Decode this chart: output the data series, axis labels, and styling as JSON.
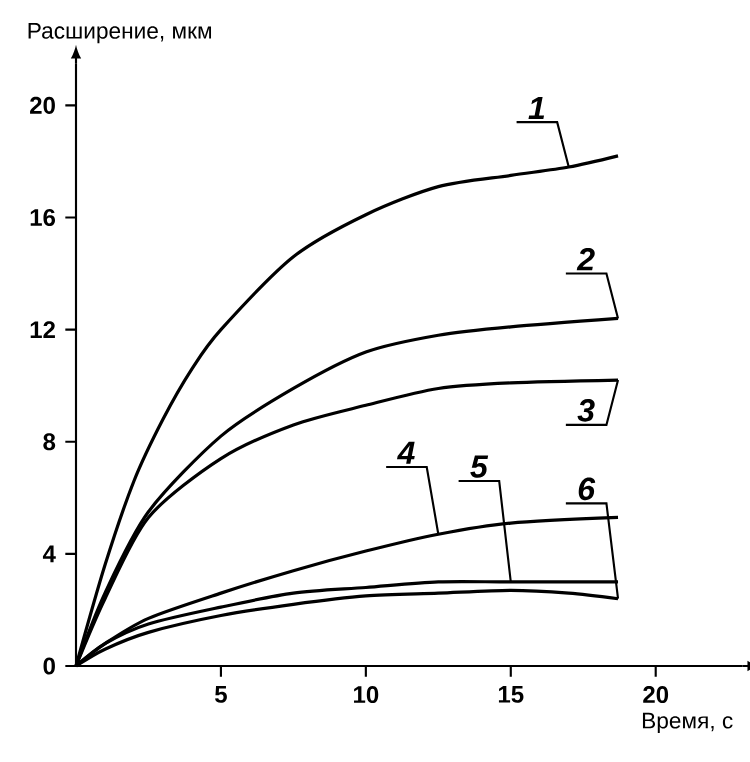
{
  "chart_data": {
    "type": "line",
    "xlabel": "Время, с",
    "ylabel": "Расширение, мкм",
    "xlim": [
      0,
      23
    ],
    "ylim": [
      0,
      21.5
    ],
    "xticks": [
      5,
      10,
      15,
      20
    ],
    "yticks": [
      0,
      4,
      8,
      12,
      16,
      20
    ],
    "legend": false,
    "grid": false,
    "marker": "none",
    "line_style": "solid",
    "series": [
      {
        "name": "1",
        "color": "#000000",
        "x": [
          0,
          1,
          2,
          3,
          4,
          5,
          7.5,
          10,
          12.5,
          15,
          17,
          18.7
        ],
        "values": [
          0,
          3.6,
          6.6,
          8.8,
          10.6,
          12.0,
          14.6,
          16.1,
          17.1,
          17.5,
          17.8,
          18.2
        ]
      },
      {
        "name": "2",
        "color": "#000000",
        "x": [
          0,
          1,
          2.5,
          5,
          7.5,
          10,
          12.5,
          15,
          18.7
        ],
        "values": [
          0,
          2.6,
          5.5,
          8.2,
          9.9,
          11.2,
          11.8,
          12.1,
          12.4
        ]
      },
      {
        "name": "3",
        "color": "#000000",
        "x": [
          0,
          1,
          2.5,
          5,
          7.5,
          10,
          12.5,
          15,
          18.7
        ],
        "values": [
          0,
          2.4,
          5.3,
          7.4,
          8.6,
          9.3,
          9.9,
          10.1,
          10.2
        ]
      },
      {
        "name": "4",
        "color": "#000000",
        "x": [
          0,
          1,
          2.5,
          5,
          7.5,
          10,
          12.5,
          15,
          18.7
        ],
        "values": [
          0,
          0.8,
          1.7,
          2.6,
          3.4,
          4.1,
          4.7,
          5.1,
          5.3
        ]
      },
      {
        "name": "5",
        "color": "#000000",
        "x": [
          0,
          1,
          2.5,
          5,
          7.5,
          10,
          12.5,
          15,
          18.7
        ],
        "values": [
          0,
          0.8,
          1.5,
          2.1,
          2.6,
          2.8,
          3.0,
          3.0,
          3.0
        ]
      },
      {
        "name": "6",
        "color": "#000000",
        "x": [
          0,
          1,
          2.5,
          5,
          7.5,
          10,
          12.5,
          15,
          17,
          18.7
        ],
        "values": [
          0,
          0.6,
          1.2,
          1.8,
          2.2,
          2.5,
          2.6,
          2.7,
          2.6,
          2.4
        ]
      }
    ]
  }
}
